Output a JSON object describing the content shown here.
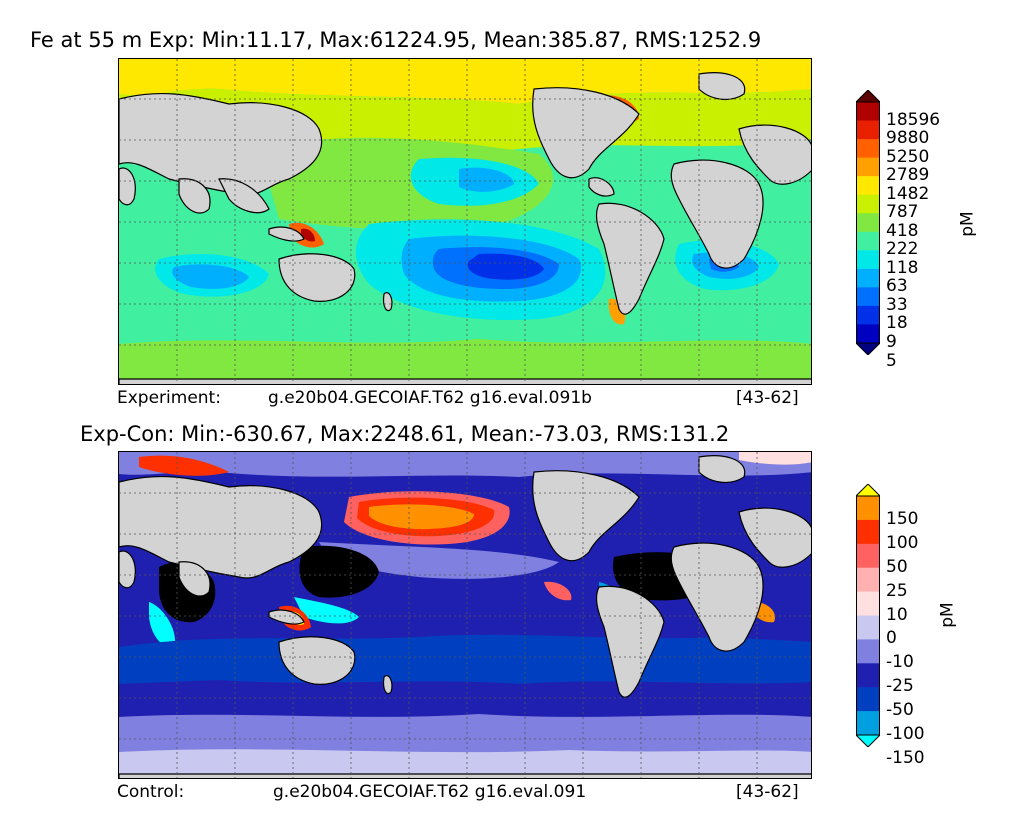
{
  "panel_top": {
    "title": "Fe at 55 m Exp: Min:11.17, Max:61224.95, Mean:385.87, RMS:1252.9",
    "caption_left": "Experiment:",
    "caption_mid": "g.e20b04.GECOIAF.T62 g16.eval.091b",
    "caption_right": "[43-62]",
    "colorbar": {
      "unit": "pM",
      "labels": [
        "18596",
        "9880",
        "5250",
        "2789",
        "1482",
        "787",
        "418",
        "222",
        "118",
        "63",
        "33",
        "18",
        "9",
        "5"
      ],
      "colors": [
        "#5a0000",
        "#b00000",
        "#e82000",
        "#ff6000",
        "#ffa000",
        "#ffe800",
        "#c8f000",
        "#80e840",
        "#40f0a0",
        "#00e8e8",
        "#00b0ff",
        "#0070ff",
        "#0030e8",
        "#0000c0",
        "#000080"
      ]
    }
  },
  "panel_bottom": {
    "title": "Exp-Con: Min:-630.67, Max:2248.61, Mean:-73.03, RMS:131.2",
    "caption_left": "Control:",
    "caption_mid": "g.e20b04.GECOIAF.T62 g16.eval.091",
    "caption_right": "[43-62]",
    "colorbar": {
      "unit": "pM",
      "labels": [
        "150",
        "100",
        "50",
        "25",
        "10",
        "0",
        "-10",
        "-25",
        "-50",
        "-100",
        "-150"
      ],
      "colors": [
        "#ffff00",
        "#ff9000",
        "#ff3000",
        "#ff6060",
        "#ffb0b0",
        "#ffe0e0",
        "#c8c8f0",
        "#8080e0",
        "#2020b0",
        "#0040c0",
        "#00a0e0",
        "#00ffff"
      ]
    }
  }
}
